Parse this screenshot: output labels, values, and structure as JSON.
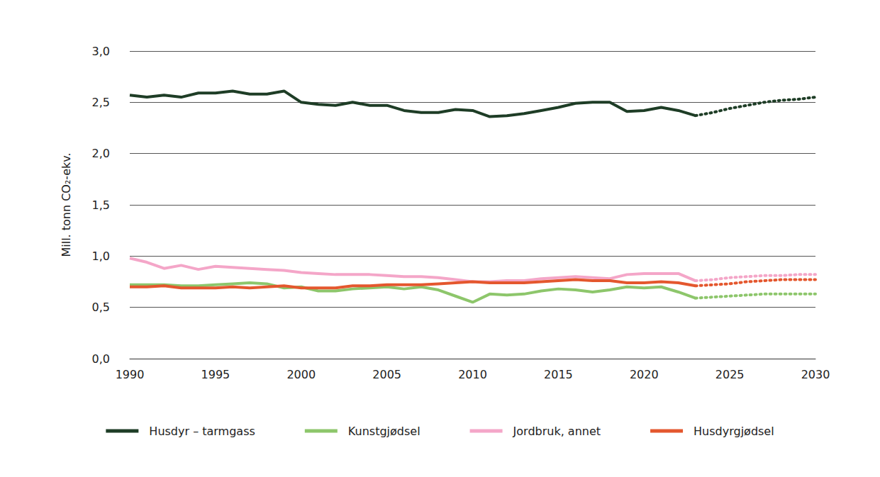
{
  "chart_data": {
    "type": "line",
    "y_label": "Mill. tonn CO₂-ekv.",
    "x": [
      1990,
      1991,
      1992,
      1993,
      1994,
      1995,
      1996,
      1997,
      1998,
      1999,
      2000,
      2001,
      2002,
      2003,
      2004,
      2005,
      2006,
      2007,
      2008,
      2009,
      2010,
      2011,
      2012,
      2013,
      2014,
      2015,
      2016,
      2017,
      2018,
      2019,
      2020,
      2021,
      2022,
      2023,
      2024,
      2025,
      2026,
      2027,
      2028,
      2029,
      2030
    ],
    "xlim": [
      1990,
      2030
    ],
    "xticks": [
      1990,
      1995,
      2000,
      2005,
      2010,
      2015,
      2020,
      2025,
      2030
    ],
    "ylim": [
      0,
      3
    ],
    "yticks": [
      {
        "value": 0,
        "label": "0,0"
      },
      {
        "value": 0.5,
        "label": "0,5"
      },
      {
        "value": 1,
        "label": "1,0"
      },
      {
        "value": 1.5,
        "label": "1,5"
      },
      {
        "value": 2,
        "label": "2,0"
      },
      {
        "value": 2.5,
        "label": "2,5"
      },
      {
        "value": 3,
        "label": "3,0"
      }
    ],
    "grid": true,
    "legend": "bottom",
    "series": [
      {
        "name": "Husdyr – tarmgass",
        "color": "#1e3d26",
        "values": [
          2.57,
          2.55,
          2.57,
          2.55,
          2.59,
          2.59,
          2.61,
          2.58,
          2.58,
          2.61,
          2.5,
          2.48,
          2.47,
          2.5,
          2.47,
          2.47,
          2.42,
          2.4,
          2.4,
          2.43,
          2.42,
          2.36,
          2.37,
          2.39,
          2.42,
          2.45,
          2.49,
          2.5,
          2.5,
          2.41,
          2.42,
          2.45,
          2.42,
          2.37,
          null,
          null,
          null,
          null,
          null,
          null,
          null
        ],
        "projection": [
          null,
          null,
          null,
          null,
          null,
          null,
          null,
          null,
          null,
          null,
          null,
          null,
          null,
          null,
          null,
          null,
          null,
          null,
          null,
          null,
          null,
          null,
          null,
          null,
          null,
          null,
          null,
          null,
          null,
          null,
          null,
          null,
          null,
          2.37,
          2.4,
          2.44,
          2.47,
          2.5,
          2.52,
          2.53,
          2.55
        ]
      },
      {
        "name": "Kunstgjødsel",
        "color": "#8dc66b",
        "values": [
          0.72,
          0.72,
          0.72,
          0.71,
          0.71,
          0.72,
          0.73,
          0.74,
          0.73,
          0.69,
          0.7,
          0.66,
          0.66,
          0.68,
          0.69,
          0.7,
          0.68,
          0.7,
          0.67,
          0.61,
          0.55,
          0.63,
          0.62,
          0.63,
          0.66,
          0.68,
          0.67,
          0.65,
          0.67,
          0.7,
          0.69,
          0.7,
          0.65,
          0.59,
          null,
          null,
          null,
          null,
          null,
          null,
          null
        ],
        "projection": [
          null,
          null,
          null,
          null,
          null,
          null,
          null,
          null,
          null,
          null,
          null,
          null,
          null,
          null,
          null,
          null,
          null,
          null,
          null,
          null,
          null,
          null,
          null,
          null,
          null,
          null,
          null,
          null,
          null,
          null,
          null,
          null,
          null,
          0.59,
          0.6,
          0.61,
          0.62,
          0.63,
          0.63,
          0.63,
          0.63
        ]
      },
      {
        "name": "Jordbruk, annet",
        "color": "#f4a6c8",
        "values": [
          0.98,
          0.94,
          0.88,
          0.91,
          0.87,
          0.9,
          0.89,
          0.88,
          0.87,
          0.86,
          0.84,
          0.83,
          0.82,
          0.82,
          0.82,
          0.81,
          0.8,
          0.8,
          0.79,
          0.77,
          0.75,
          0.75,
          0.76,
          0.76,
          0.78,
          0.79,
          0.8,
          0.79,
          0.78,
          0.82,
          0.83,
          0.83,
          0.83,
          0.76,
          null,
          null,
          null,
          null,
          null,
          null,
          null
        ],
        "projection": [
          null,
          null,
          null,
          null,
          null,
          null,
          null,
          null,
          null,
          null,
          null,
          null,
          null,
          null,
          null,
          null,
          null,
          null,
          null,
          null,
          null,
          null,
          null,
          null,
          null,
          null,
          null,
          null,
          null,
          null,
          null,
          null,
          null,
          0.76,
          0.77,
          0.79,
          0.8,
          0.81,
          0.81,
          0.82,
          0.82
        ]
      },
      {
        "name": "Husdyrgjødsel",
        "color": "#e4572e",
        "values": [
          0.7,
          0.7,
          0.71,
          0.69,
          0.69,
          0.69,
          0.7,
          0.69,
          0.7,
          0.71,
          0.69,
          0.69,
          0.69,
          0.71,
          0.71,
          0.72,
          0.72,
          0.72,
          0.73,
          0.74,
          0.75,
          0.74,
          0.74,
          0.74,
          0.75,
          0.76,
          0.77,
          0.76,
          0.76,
          0.74,
          0.74,
          0.75,
          0.74,
          0.71,
          null,
          null,
          null,
          null,
          null,
          null,
          null
        ],
        "projection": [
          null,
          null,
          null,
          null,
          null,
          null,
          null,
          null,
          null,
          null,
          null,
          null,
          null,
          null,
          null,
          null,
          null,
          null,
          null,
          null,
          null,
          null,
          null,
          null,
          null,
          null,
          null,
          null,
          null,
          null,
          null,
          null,
          null,
          0.71,
          0.72,
          0.73,
          0.75,
          0.76,
          0.77,
          0.77,
          0.77
        ]
      }
    ]
  }
}
